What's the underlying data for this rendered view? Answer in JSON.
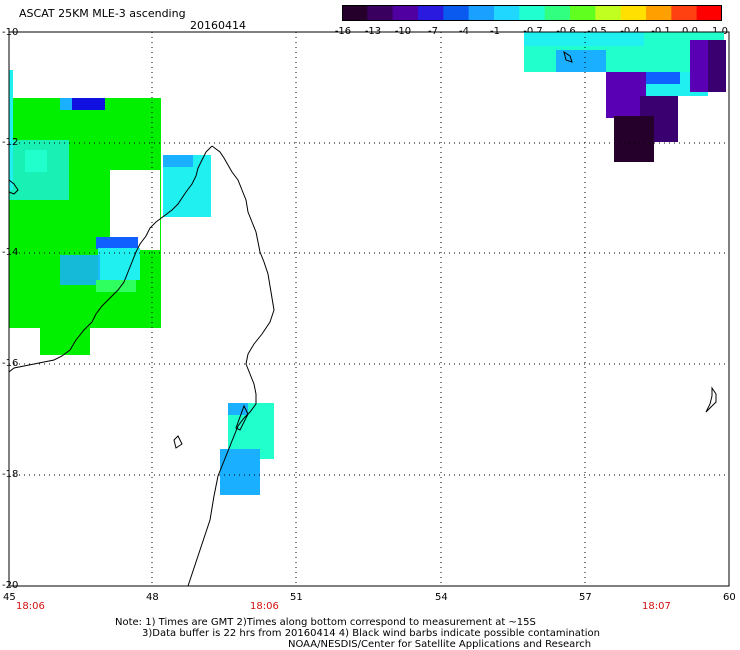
{
  "header": {
    "title": "ASCAT 25KM MLE-3 ascending",
    "date": "20160414"
  },
  "colorbar": {
    "labels": [
      "-16",
      "-13",
      "-10",
      "-7",
      "-4",
      "-1",
      "-0.7",
      "-0.6",
      "-0.5",
      "-0.4",
      "-0.1",
      "0.0",
      "1.0"
    ],
    "colors": [
      "#25002a",
      "#3a0060",
      "#5000a0",
      "#2a1ae0",
      "#0a5af0",
      "#1aa0ff",
      "#20d8ff",
      "#20ffd0",
      "#30ff80",
      "#60ff20",
      "#c0ff20",
      "#ffe000",
      "#ffa000",
      "#ff4010",
      "#ff0000"
    ]
  },
  "map": {
    "lat_labels": [
      "-10",
      "-12",
      "-14",
      "-16",
      "-18",
      "-20"
    ],
    "lon_labels": [
      "45",
      "48",
      "51",
      "54",
      "57",
      "60"
    ],
    "pass_times": [
      "18:06",
      "18:06",
      "18:07"
    ]
  },
  "notes": {
    "line1": "Note: 1) Times are GMT 2)Times along bottom correspond to measurement at ~15S",
    "line2": "3)Data buffer is 22 hrs from 20160414 4) Black wind barbs indicate possible contamination",
    "line3": "NOAA/NESDIS/Center for Satellite Applications and Research"
  },
  "legend_colors": {
    "green": "#00f000",
    "green_light": "#30ff60",
    "cyan": "#20f0f0",
    "aqua": "#20ffcc",
    "sky": "#1ab0ff",
    "blue": "#1060ff",
    "deep_blue": "#1010e0",
    "purple": "#5a00b4",
    "dark_purple": "#3a0070",
    "darkest": "#25002a"
  }
}
